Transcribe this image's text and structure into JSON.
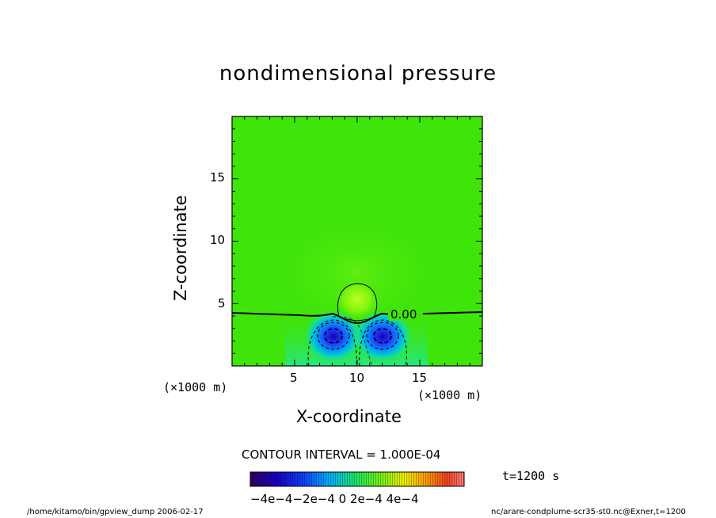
{
  "chart_data": {
    "type": "heatmap",
    "title": "nondimensional pressure",
    "xlabel": "X-coordinate",
    "ylabel": "Z-coordinate",
    "x_unit": "(×1000 m)",
    "y_unit": "(×1000 m)",
    "xlim": [
      0,
      20
    ],
    "ylim": [
      0,
      20
    ],
    "xticks": [
      5,
      10,
      15
    ],
    "yticks": [
      5,
      10,
      15
    ],
    "contour_label": "0.00",
    "contour_interval_text": "CONTOUR INTERVAL = 1.000E-04",
    "colorbar_range": [
      -0.0005,
      0.0005
    ],
    "colorbar_ticks": "−4e−4−2e−4   0    2e−4  4e−4",
    "field_features": [
      {
        "kind": "low",
        "x": 8.0,
        "z": 2.4,
        "value": -0.00045
      },
      {
        "kind": "low",
        "x": 12.0,
        "z": 2.4,
        "value": -0.00045
      },
      {
        "kind": "high",
        "x": 10.0,
        "z": 5.3,
        "value": 0.00012
      }
    ],
    "zero_contour_z": [
      4.2,
      3.4,
      4.2
    ],
    "colors": {
      "background": "#3fe40a",
      "min": "#1200c8",
      "max": "#e02020"
    }
  },
  "time_label": "t=1200 s",
  "footer": {
    "left": "/home/kitamo/bin/gpview_dump  2006-02-17",
    "right": "nc/arare-condplume-scr35-st0.nc@Exner,t=1200"
  }
}
